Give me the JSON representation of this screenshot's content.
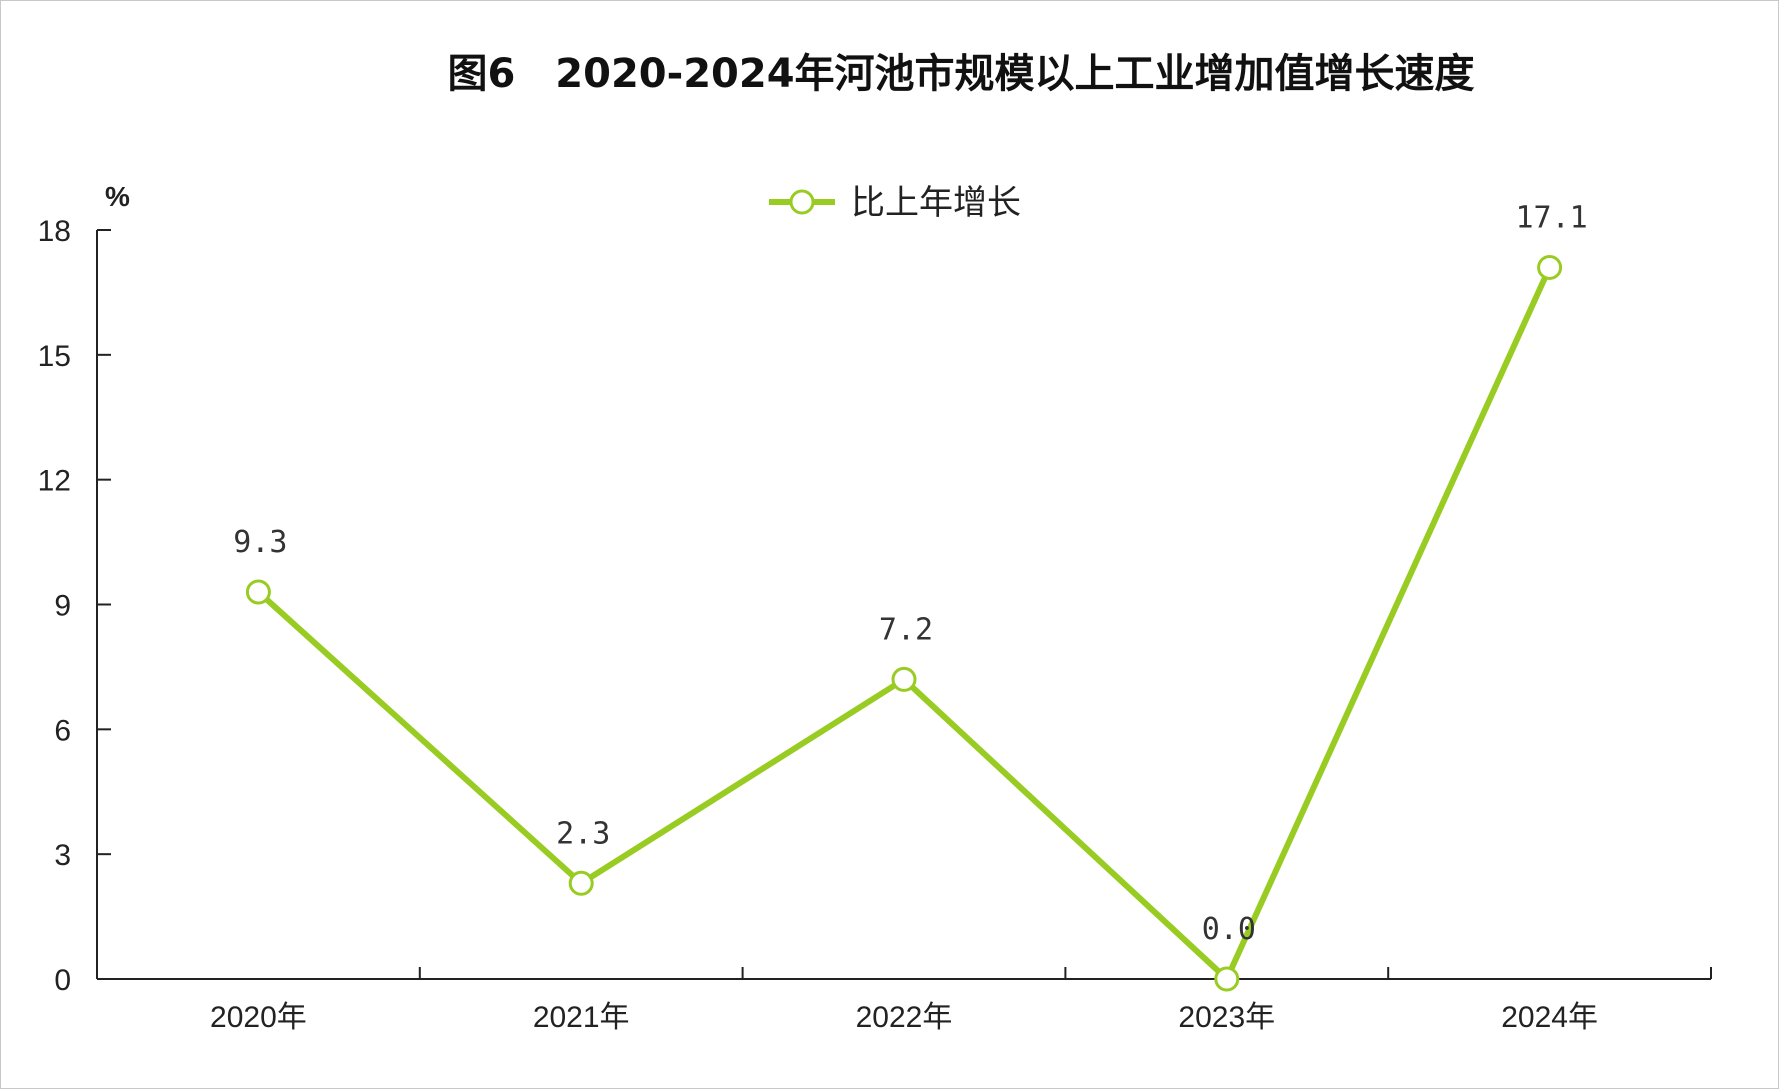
{
  "chart_data": {
    "type": "line",
    "title": "图6　2020-2024年河池市规模以上工业增加值增长速度",
    "y_unit": "%",
    "categories": [
      "2020年",
      "2021年",
      "2022年",
      "2023年",
      "2024年"
    ],
    "series": [
      {
        "name": "比上年增长",
        "values": [
          9.3,
          2.3,
          7.2,
          0.0,
          17.1
        ],
        "data_labels": [
          "9.3",
          "2.3",
          "7.2",
          "0.0",
          "17.1"
        ],
        "color": "#99cc22"
      }
    ],
    "ylim": [
      0,
      18
    ],
    "y_ticks": [
      "0",
      "3",
      "6",
      "9",
      "12",
      "15",
      "18"
    ],
    "grid": false,
    "legend_position": "top-center"
  }
}
